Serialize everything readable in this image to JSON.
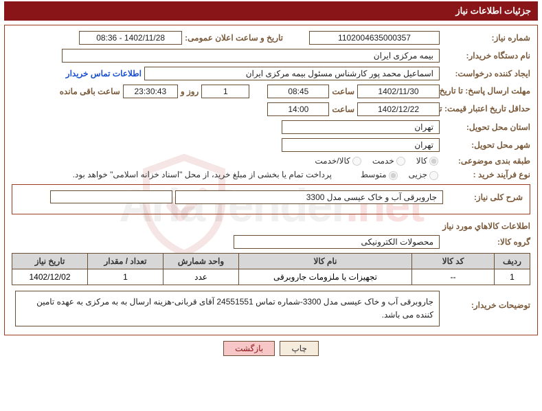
{
  "colors": {
    "header_bg": "#8a1518",
    "header_text": "#ffffff",
    "panel_border": "#9e3c1f",
    "label": "#7a5a3a",
    "input_border": "#6a4e33",
    "link": "#1a4fcf",
    "th_bg": "#d7d7d7",
    "btn_bg": "#f5ecdd",
    "btn_back_bg": "#f7c6c6"
  },
  "title": "جزئیات اطلاعات نیاز",
  "labels": {
    "need_no": "شماره نياز:",
    "announce_dt": "تاریخ و ساعت اعلان عمومی:",
    "buyer_org": "نام دستگاه خریدار:",
    "requester": "ایجاد کننده درخواست:",
    "contact_link": "اطلاعات تماس خریدار",
    "deadline": "مهلت ارسال پاسخ: تا تاریخ:",
    "hour": "ساعت",
    "day_and": "روز و",
    "remaining": "ساعت باقی مانده",
    "validity": "حداقل تاریخ اعتبار قیمت: تا تاریخ:",
    "delivery_prov": "استان محل تحویل:",
    "delivery_city": "شهر محل تحویل:",
    "category": "طبقه بندی موضوعی:",
    "purchase_type": "نوع فرآیند خرید :",
    "payment_note": "پرداخت تمام یا بخشی از مبلغ خرید، از محل \"اسناد خزانه اسلامی\" خواهد بود.",
    "general_desc": "شرح کلی نیاز:",
    "goods_info": "اطلاعات کالاهاي مورد نياز",
    "goods_group": "گروه کالا:",
    "buyer_notes": "توضیحات خریدار:"
  },
  "fields": {
    "need_no": "1102004635000357",
    "announce_dt": "1402/11/28 - 08:36",
    "buyer_org": "بیمه مرکزی ایران",
    "requester": "اسماعیل محمد پور  کارشناس مسئول  بیمه مرکزی ایران",
    "deadline_date": "1402/11/30",
    "deadline_time": "08:45",
    "remaining_days": "1",
    "remaining_time": "23:30:43",
    "validity_date": "1402/12/22",
    "validity_time": "14:00",
    "delivery_prov": "تهران",
    "delivery_city": "تهران",
    "general_desc": "جاروبرقی آب و خاک عیسی مدل 3300",
    "goods_group": "محصولات الکترونیکی",
    "buyer_notes": "جاروبرقی آب و خاک عیسی مدل 3300-شماره تماس 24551551 آقای قربانی-هزینه ارسال به به مرکزی به عهده تامین کننده می باشد."
  },
  "radios": {
    "category": [
      {
        "label": "کالا",
        "checked": true
      },
      {
        "label": "خدمت",
        "checked": false
      },
      {
        "label": "کالا/خدمت",
        "checked": false
      }
    ],
    "purchase": [
      {
        "label": "جزیی",
        "checked": false
      },
      {
        "label": "متوسط",
        "checked": true
      }
    ]
  },
  "table": {
    "columns": [
      "ردیف",
      "کد کالا",
      "نام کالا",
      "واحد شمارش",
      "تعداد / مقدار",
      "تاریخ نیاز"
    ],
    "col_widths": [
      "52px",
      "120px",
      "252px",
      "110px",
      "110px",
      "110px"
    ],
    "rows": [
      [
        "1",
        "--",
        "تجهیزات یا ملزومات جاروبرقی",
        "عدد",
        "1",
        "1402/12/02"
      ]
    ]
  },
  "buttons": {
    "print": "چاپ",
    "back": "بازگشت"
  },
  "watermark": {
    "main": "AriaTender",
    "suffix": ".net"
  }
}
